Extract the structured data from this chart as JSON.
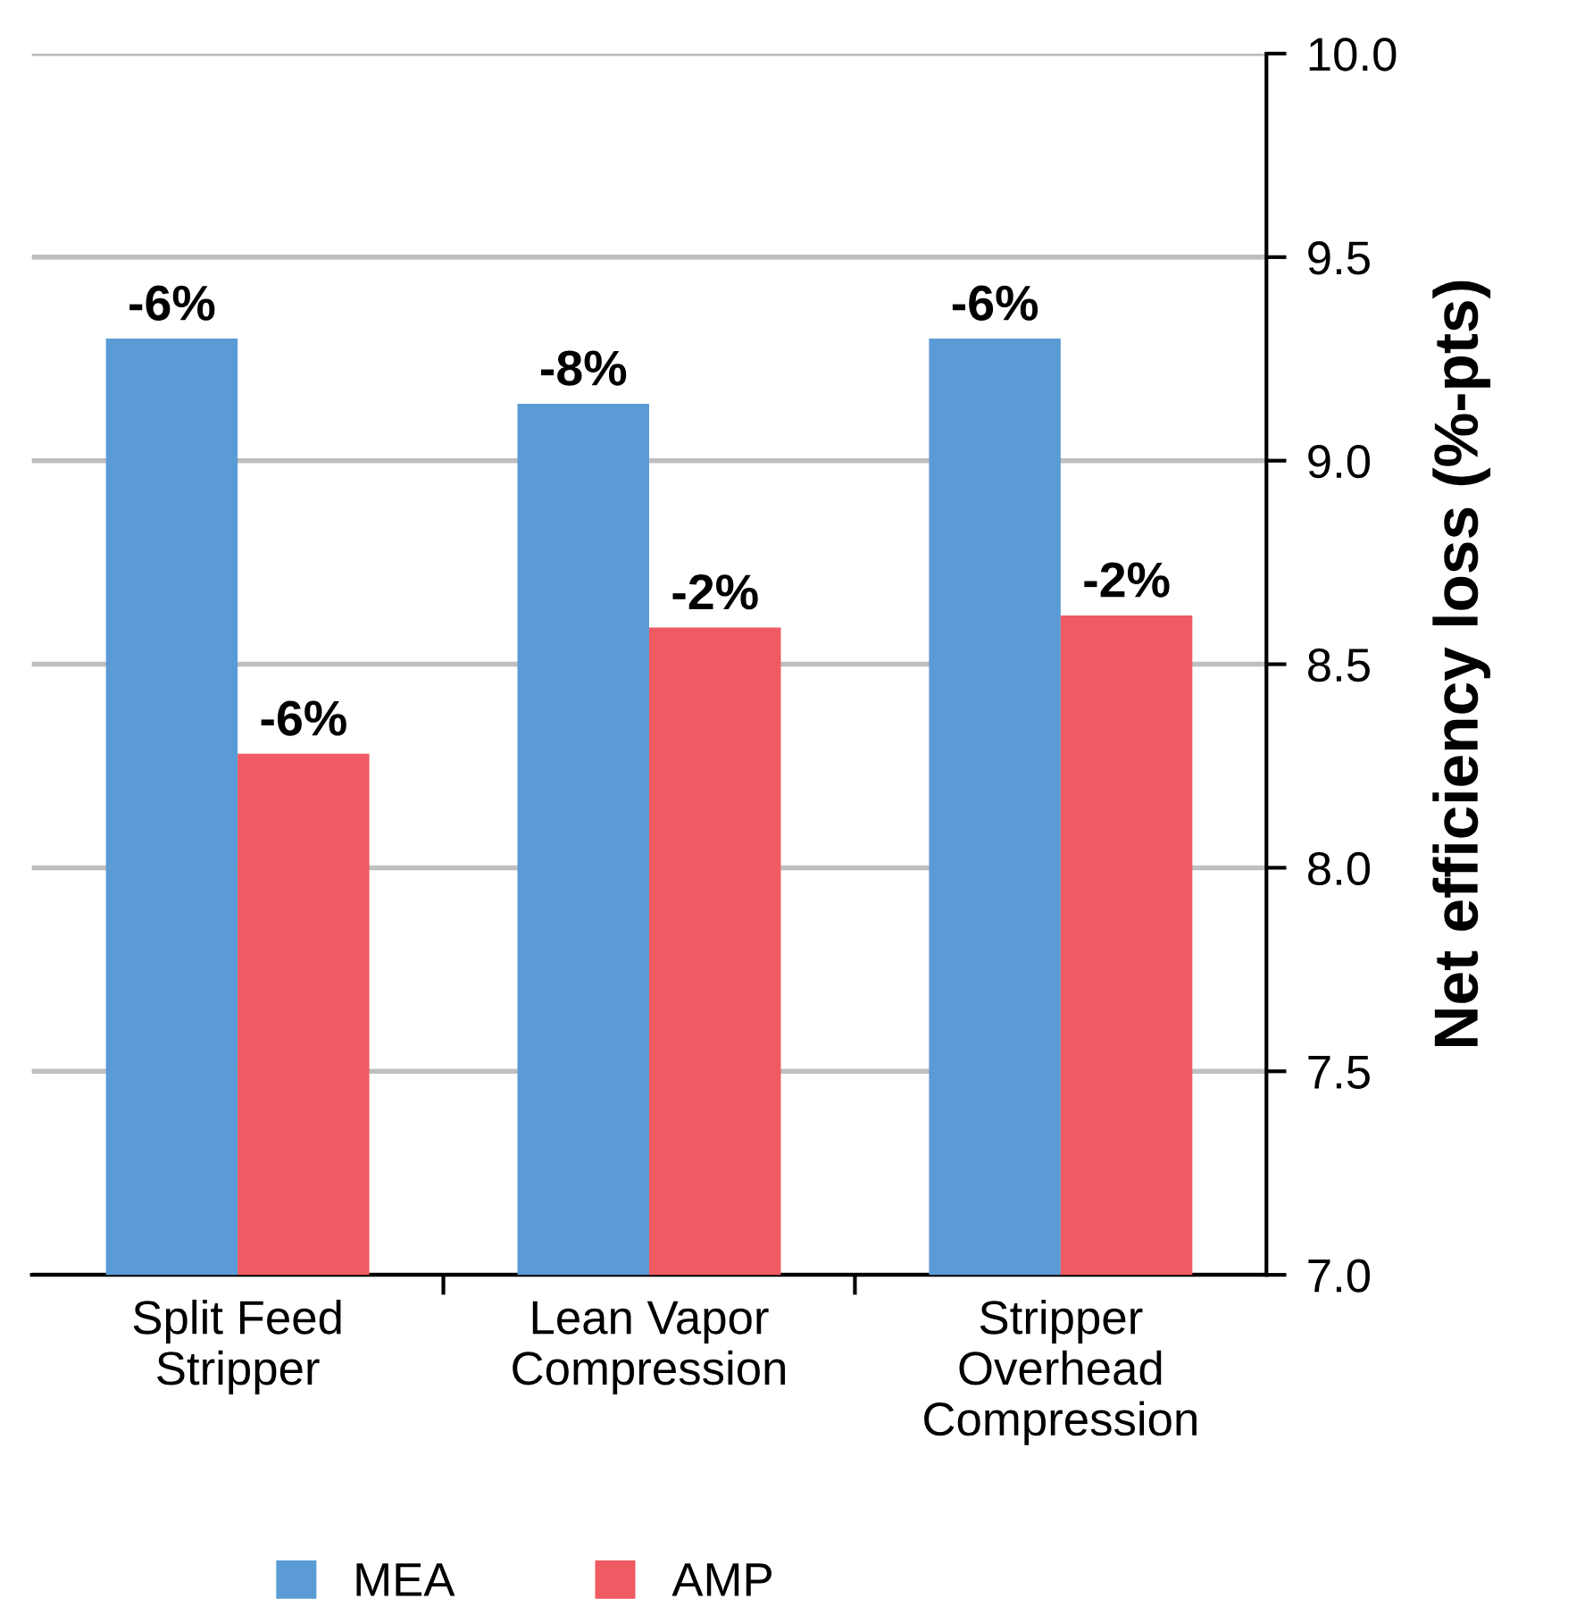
{
  "chart_data": {
    "type": "bar",
    "ylabel": "Net efficiency loss (%-pts)",
    "categories": [
      "Split Feed\nStripper",
      "Lean Vapor\nCompression",
      "Stripper\nOverhead\nCompression"
    ],
    "series": [
      {
        "name": "MEA",
        "color": "#5b9bd5",
        "values": [
          9.3,
          9.14,
          9.3
        ]
      },
      {
        "name": "AMP",
        "color": "#f05a62",
        "values": [
          8.28,
          8.59,
          8.62
        ]
      }
    ],
    "annotations": [
      "-6%",
      "-8%",
      "-6%",
      "-6%",
      "-2%",
      "-2%"
    ],
    "ylim": [
      7.0,
      10.0
    ],
    "yticks": [
      {
        "value": 7.0,
        "label": "7.0"
      },
      {
        "value": 7.5,
        "label": "7.5"
      },
      {
        "value": 8.0,
        "label": "8.0"
      },
      {
        "value": 8.5,
        "label": "8.5"
      },
      {
        "value": 9.0,
        "label": "9.0"
      },
      {
        "value": 9.5,
        "label": "9.5"
      },
      {
        "value": 10.0,
        "label": "10.0"
      }
    ],
    "grid": "y",
    "legend": "bottom"
  }
}
